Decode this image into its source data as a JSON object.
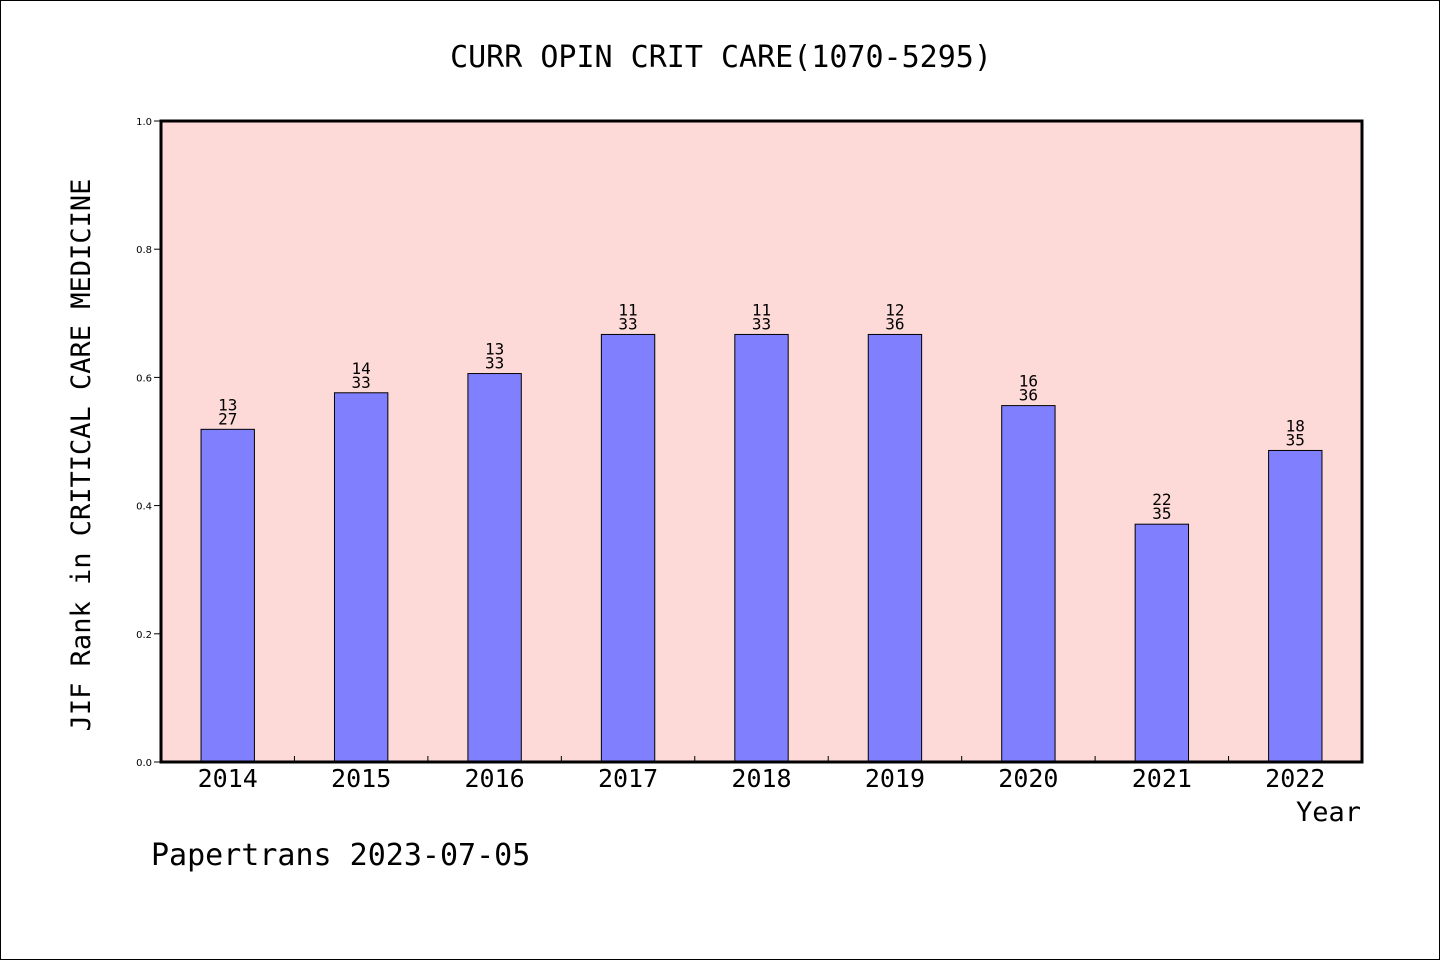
{
  "chart_data": {
    "type": "bar",
    "title": "CURR OPIN CRIT CARE(1070-5295)",
    "xlabel": "Year",
    "ylabel": "JIF Rank in CRITICAL CARE MEDICINE",
    "ylim": [
      0,
      1.0
    ],
    "yticks": [
      "0.0",
      "0.2",
      "0.4",
      "0.6",
      "0.8",
      "1.0"
    ],
    "grid": false,
    "categories": [
      "2014",
      "2015",
      "2016",
      "2017",
      "2018",
      "2019",
      "2020",
      "2021",
      "2022"
    ],
    "values": [
      0.519,
      0.576,
      0.606,
      0.667,
      0.667,
      0.667,
      0.556,
      0.371,
      0.486
    ],
    "rank": [
      "13",
      "14",
      "13",
      "11",
      "11",
      "12",
      "16",
      "22",
      "18"
    ],
    "total": [
      "27",
      "33",
      "33",
      "33",
      "33",
      "36",
      "36",
      "35",
      "35"
    ],
    "footer": "Papertrans 2023-07-05",
    "colors": {
      "plot_background": "#fdd9d7",
      "bar_fill": "#8080ff",
      "bar_stroke": "#000000",
      "axis": "#000000"
    }
  }
}
